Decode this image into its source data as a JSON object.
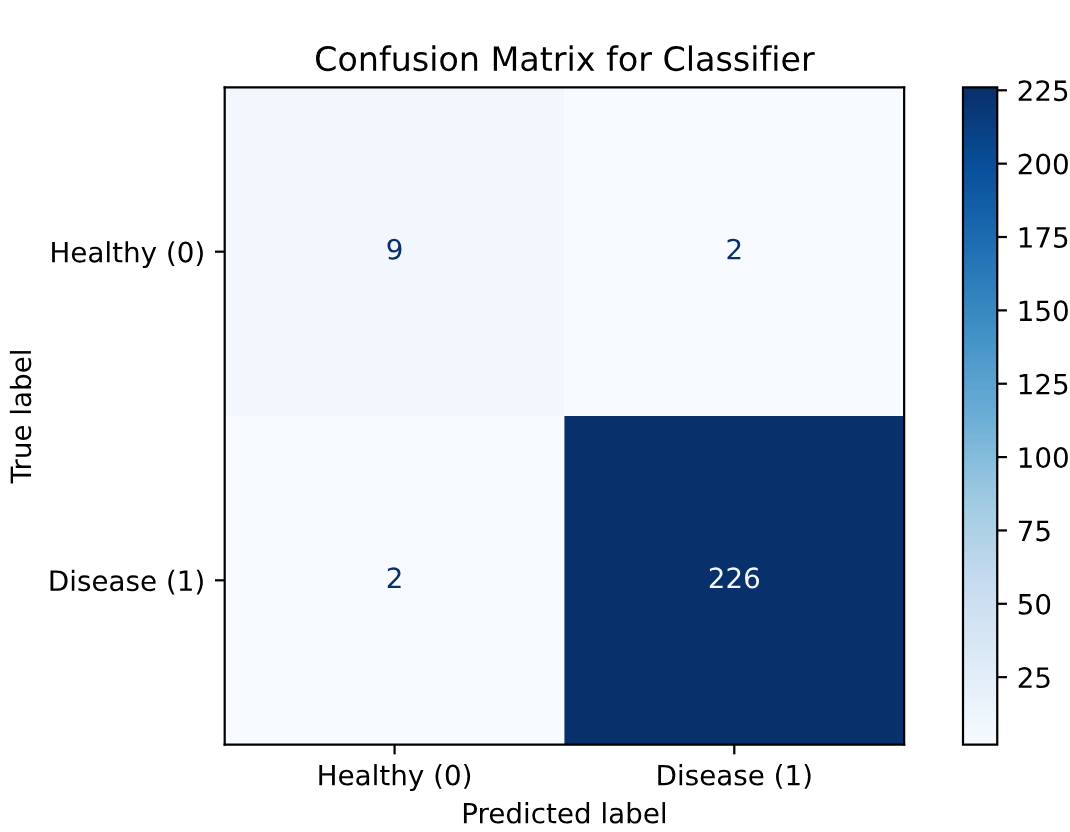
{
  "chart_data": {
    "type": "heatmap",
    "title": "Confusion Matrix for Classifier",
    "xlabel": "Predicted label",
    "ylabel": "True label",
    "categories": [
      "Healthy (0)",
      "Disease (1)"
    ],
    "y_categories": [
      "Healthy (0)",
      "Disease (1)"
    ],
    "cells": [
      [
        9,
        2
      ],
      [
        2,
        226
      ]
    ],
    "data_labels": true,
    "clim": [
      2,
      226
    ],
    "cticks": [
      25,
      50,
      75,
      100,
      125,
      150,
      175,
      200,
      225
    ],
    "grid": false
  }
}
